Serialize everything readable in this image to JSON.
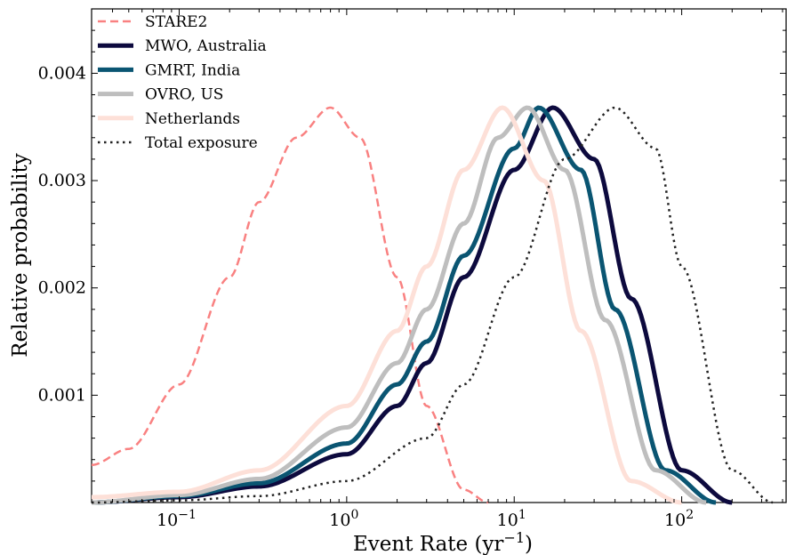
{
  "chart_data": {
    "type": "line",
    "title": "",
    "xlabel": "Event Rate (yr",
    "xlabel_sup": "−1",
    "xlabel_close": ")",
    "ylabel": "Relative probability",
    "xscale": "log",
    "xlim": [
      0.03,
      420
    ],
    "ylim": [
      0.0,
      0.0046
    ],
    "x_ticks": [
      {
        "value": 0.1,
        "base": "10",
        "exp": "−1"
      },
      {
        "value": 1,
        "base": "10",
        "exp": "0"
      },
      {
        "value": 10,
        "base": "10",
        "exp": "1"
      },
      {
        "value": 100,
        "base": "10",
        "exp": "2"
      }
    ],
    "y_ticks": [
      {
        "value": 0.001,
        "label": "0.001"
      },
      {
        "value": 0.002,
        "label": "0.002"
      },
      {
        "value": 0.003,
        "label": "0.003"
      },
      {
        "value": 0.004,
        "label": "0.004"
      }
    ],
    "grid": false,
    "legend_position": "top-left",
    "series": [
      {
        "name": "STARE2",
        "color": "#f98181",
        "style": "dashed",
        "width": 2.5,
        "peak_x": 0.8,
        "peak_y": 0.00368,
        "x": [
          0.03,
          0.05,
          0.1,
          0.2,
          0.3,
          0.5,
          0.8,
          1.2,
          2.0,
          3.0,
          5.0,
          7.0
        ],
        "y": [
          0.00035,
          0.0005,
          0.0011,
          0.0021,
          0.0028,
          0.0034,
          0.00368,
          0.0034,
          0.0021,
          0.0009,
          0.00012,
          0.0
        ]
      },
      {
        "name": "MWO, Australia",
        "color": "#0d0a3e",
        "style": "solid",
        "width": 5,
        "peak_x": 17,
        "peak_y": 0.00368,
        "x": [
          0.03,
          0.1,
          0.3,
          1,
          2,
          3,
          5,
          10,
          17,
          30,
          50,
          100,
          200
        ],
        "y": [
          0.0,
          5e-05,
          0.00015,
          0.00045,
          0.0009,
          0.0013,
          0.0021,
          0.0031,
          0.00368,
          0.0032,
          0.0019,
          0.0003,
          0.0
        ]
      },
      {
        "name": "GMRT, India",
        "color": "#0a5572",
        "style": "solid",
        "width": 5,
        "peak_x": 14,
        "peak_y": 0.00368,
        "x": [
          0.03,
          0.1,
          0.3,
          1,
          2,
          3,
          5,
          10,
          14,
          25,
          40,
          80,
          160
        ],
        "y": [
          0.0,
          6e-05,
          0.00018,
          0.00055,
          0.0011,
          0.0015,
          0.0023,
          0.0033,
          0.00368,
          0.0031,
          0.0018,
          0.0003,
          0.0
        ]
      },
      {
        "name": "OVRO, US",
        "color": "#bebebe",
        "style": "solid",
        "width": 5,
        "peak_x": 12,
        "peak_y": 0.00368,
        "x": [
          0.03,
          0.1,
          0.3,
          1,
          2,
          3,
          5,
          8,
          12,
          20,
          35,
          70,
          140
        ],
        "y": [
          0.0,
          7e-05,
          0.00022,
          0.0007,
          0.0013,
          0.0018,
          0.0026,
          0.0034,
          0.00368,
          0.0031,
          0.0017,
          0.0003,
          0.0
        ]
      },
      {
        "name": "Netherlands",
        "color": "#fde0d8",
        "style": "solid",
        "width": 5,
        "peak_x": 8.5,
        "peak_y": 0.00368,
        "x": [
          0.03,
          0.1,
          0.3,
          1,
          2,
          3,
          5,
          8.5,
          15,
          25,
          50,
          100
        ],
        "y": [
          5e-05,
          0.0001,
          0.0003,
          0.0009,
          0.0016,
          0.0022,
          0.0031,
          0.00368,
          0.003,
          0.0016,
          0.0002,
          0.0
        ]
      },
      {
        "name": "Total exposure",
        "color": "#222222",
        "style": "dotted",
        "width": 2.5,
        "peak_x": 40,
        "peak_y": 0.00368,
        "x": [
          0.03,
          0.1,
          0.3,
          1,
          3,
          5,
          10,
          20,
          40,
          70,
          100,
          200,
          350
        ],
        "y": [
          0.0,
          2e-05,
          6e-05,
          0.0002,
          0.0006,
          0.0011,
          0.0021,
          0.0032,
          0.00368,
          0.0033,
          0.0022,
          0.0003,
          0.0
        ]
      }
    ]
  }
}
